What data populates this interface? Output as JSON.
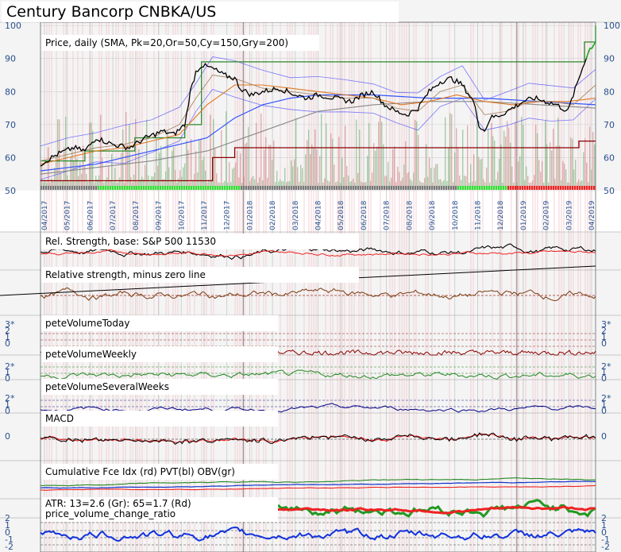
{
  "title": "Century Bancorp CNBKA/US",
  "colors": {
    "background": "#f4f4f4",
    "price_black": "#000000",
    "sma_blue": "#3355ff",
    "sma_orange": "#e07820",
    "sma_gray": "#888888",
    "band_blue": "#4444ff",
    "high_green": "#2a8a2a",
    "low_red": "#8b0000",
    "vol_green": "#66aa66",
    "vol_red": "#cc7777",
    "axis_text": "#2a4f8f"
  },
  "chart_data": {
    "type": "line",
    "date_ticks": [
      "04/2017",
      "05/2017",
      "06/2017",
      "07/2017",
      "08/2017",
      "09/2017",
      "10/2017",
      "11/2017",
      "12/2017",
      "01/2018",
      "02/2018",
      "03/2018",
      "04/2018",
      "05/2018",
      "06/2018",
      "07/2018",
      "08/2018",
      "09/2018",
      "10/2018",
      "11/2018",
      "12/2018",
      "01/2019",
      "02/2019",
      "03/2019",
      "04/2019"
    ],
    "panels": [
      {
        "key": "price",
        "label": "Price, daily (SMA, Pk=20,Or=50,Cy=150,Gry=200)",
        "y_ticks": [
          "50",
          "60",
          "70",
          "80",
          "90",
          "100"
        ],
        "ylim": [
          50,
          101
        ],
        "price_path": [
          [
            0,
            58
          ],
          [
            3,
            61
          ],
          [
            6,
            63
          ],
          [
            8,
            62
          ],
          [
            10,
            66
          ],
          [
            13,
            64
          ],
          [
            16,
            63
          ],
          [
            19,
            66
          ],
          [
            22,
            68
          ],
          [
            24,
            67
          ],
          [
            26,
            70
          ],
          [
            27,
            80
          ],
          [
            28,
            86
          ],
          [
            29,
            88
          ],
          [
            31,
            87
          ],
          [
            33,
            85
          ],
          [
            35,
            84
          ],
          [
            36,
            81
          ],
          [
            38,
            79
          ],
          [
            40,
            80
          ],
          [
            43,
            81
          ],
          [
            46,
            79
          ],
          [
            48,
            78
          ],
          [
            50,
            79
          ],
          [
            53,
            78
          ],
          [
            56,
            77
          ],
          [
            58,
            79
          ],
          [
            60,
            80
          ],
          [
            62,
            76
          ],
          [
            64,
            74
          ],
          [
            66,
            73
          ],
          [
            68,
            75
          ],
          [
            70,
            80
          ],
          [
            72,
            83
          ],
          [
            74,
            84
          ],
          [
            76,
            82
          ],
          [
            78,
            77
          ],
          [
            79,
            70
          ],
          [
            80,
            68
          ],
          [
            81,
            72
          ],
          [
            83,
            73
          ],
          [
            85,
            75
          ],
          [
            87,
            77
          ],
          [
            89,
            78
          ],
          [
            91,
            77
          ],
          [
            93,
            76
          ],
          [
            95,
            74
          ],
          [
            96,
            79
          ],
          [
            98,
            89
          ],
          [
            99,
            93
          ],
          [
            100,
            95
          ]
        ],
        "sma20_path": [
          [
            0,
            59
          ],
          [
            5,
            61
          ],
          [
            10,
            63
          ],
          [
            15,
            64
          ],
          [
            20,
            66
          ],
          [
            25,
            70
          ],
          [
            28,
            78
          ],
          [
            31,
            85
          ],
          [
            35,
            84
          ],
          [
            40,
            81
          ],
          [
            45,
            80
          ],
          [
            50,
            79
          ],
          [
            55,
            78
          ],
          [
            60,
            78
          ],
          [
            64,
            75
          ],
          [
            68,
            74
          ],
          [
            72,
            80
          ],
          [
            76,
            82
          ],
          [
            80,
            73
          ],
          [
            84,
            74
          ],
          [
            88,
            77
          ],
          [
            92,
            77
          ],
          [
            96,
            76
          ],
          [
            100,
            82
          ]
        ],
        "sma50_path": [
          [
            0,
            58
          ],
          [
            5,
            60
          ],
          [
            10,
            62
          ],
          [
            15,
            63
          ],
          [
            20,
            65
          ],
          [
            25,
            67
          ],
          [
            30,
            76
          ],
          [
            35,
            82
          ],
          [
            40,
            82
          ],
          [
            45,
            81
          ],
          [
            50,
            80
          ],
          [
            55,
            79
          ],
          [
            60,
            78
          ],
          [
            65,
            76
          ],
          [
            70,
            77
          ],
          [
            75,
            79
          ],
          [
            80,
            77
          ],
          [
            85,
            76
          ],
          [
            90,
            77
          ],
          [
            95,
            77
          ],
          [
            100,
            78
          ]
        ],
        "sma150_path": [
          [
            0,
            56
          ],
          [
            10,
            58
          ],
          [
            20,
            62
          ],
          [
            30,
            66
          ],
          [
            35,
            72
          ],
          [
            40,
            76
          ],
          [
            45,
            78
          ],
          [
            50,
            79
          ],
          [
            60,
            79
          ],
          [
            70,
            78
          ],
          [
            80,
            78
          ],
          [
            90,
            77
          ],
          [
            100,
            76
          ]
        ],
        "sma200_path": [
          [
            0,
            55
          ],
          [
            20,
            59
          ],
          [
            30,
            62
          ],
          [
            40,
            68
          ],
          [
            50,
            74
          ],
          [
            60,
            76
          ],
          [
            70,
            77
          ],
          [
            80,
            77
          ],
          [
            90,
            76
          ],
          [
            100,
            75
          ]
        ],
        "high_step": [
          [
            0,
            59
          ],
          [
            8,
            62
          ],
          [
            17,
            66
          ],
          [
            26,
            70
          ],
          [
            29,
            89
          ],
          [
            96,
            89
          ],
          [
            98,
            95
          ],
          [
            100,
            100
          ]
        ],
        "low_step": [
          [
            0,
            53
          ],
          [
            30,
            53
          ],
          [
            31,
            60
          ],
          [
            34,
            60
          ],
          [
            35,
            63
          ],
          [
            96,
            63
          ],
          [
            97,
            65
          ],
          [
            100,
            65
          ]
        ]
      },
      {
        "key": "rs",
        "label": "Rel. Strength, base: S&P 500 11530"
      },
      {
        "key": "rs_minus_zero",
        "label": "Relative strength, minus zero line"
      },
      {
        "key": "vol_today",
        "label": "peteVolumeToday",
        "y_ticks": [
          "3*",
          "2",
          "1",
          "0"
        ]
      },
      {
        "key": "vol_weekly",
        "label": "peteVolumeWeekly",
        "y_ticks": [
          "2*",
          "1",
          "0"
        ]
      },
      {
        "key": "vol_several",
        "label": "peteVolumeSeveralWeeks",
        "y_ticks": [
          "2*",
          "1",
          "0"
        ]
      },
      {
        "key": "macd",
        "label": "MACD",
        "y_ticks": [
          "0"
        ]
      },
      {
        "key": "cum",
        "label": "Cumulative Fce Idx (rd) PVT(bl) OBV(gr)"
      },
      {
        "key": "atr",
        "label": "ATR: 13=2.6 (Gr): 65=1.7 (Rd)"
      },
      {
        "key": "pvcr",
        "label": "price_volume_change_ratio",
        "y_ticks": [
          "2",
          "1",
          "0",
          "-1",
          "-2"
        ]
      }
    ]
  }
}
